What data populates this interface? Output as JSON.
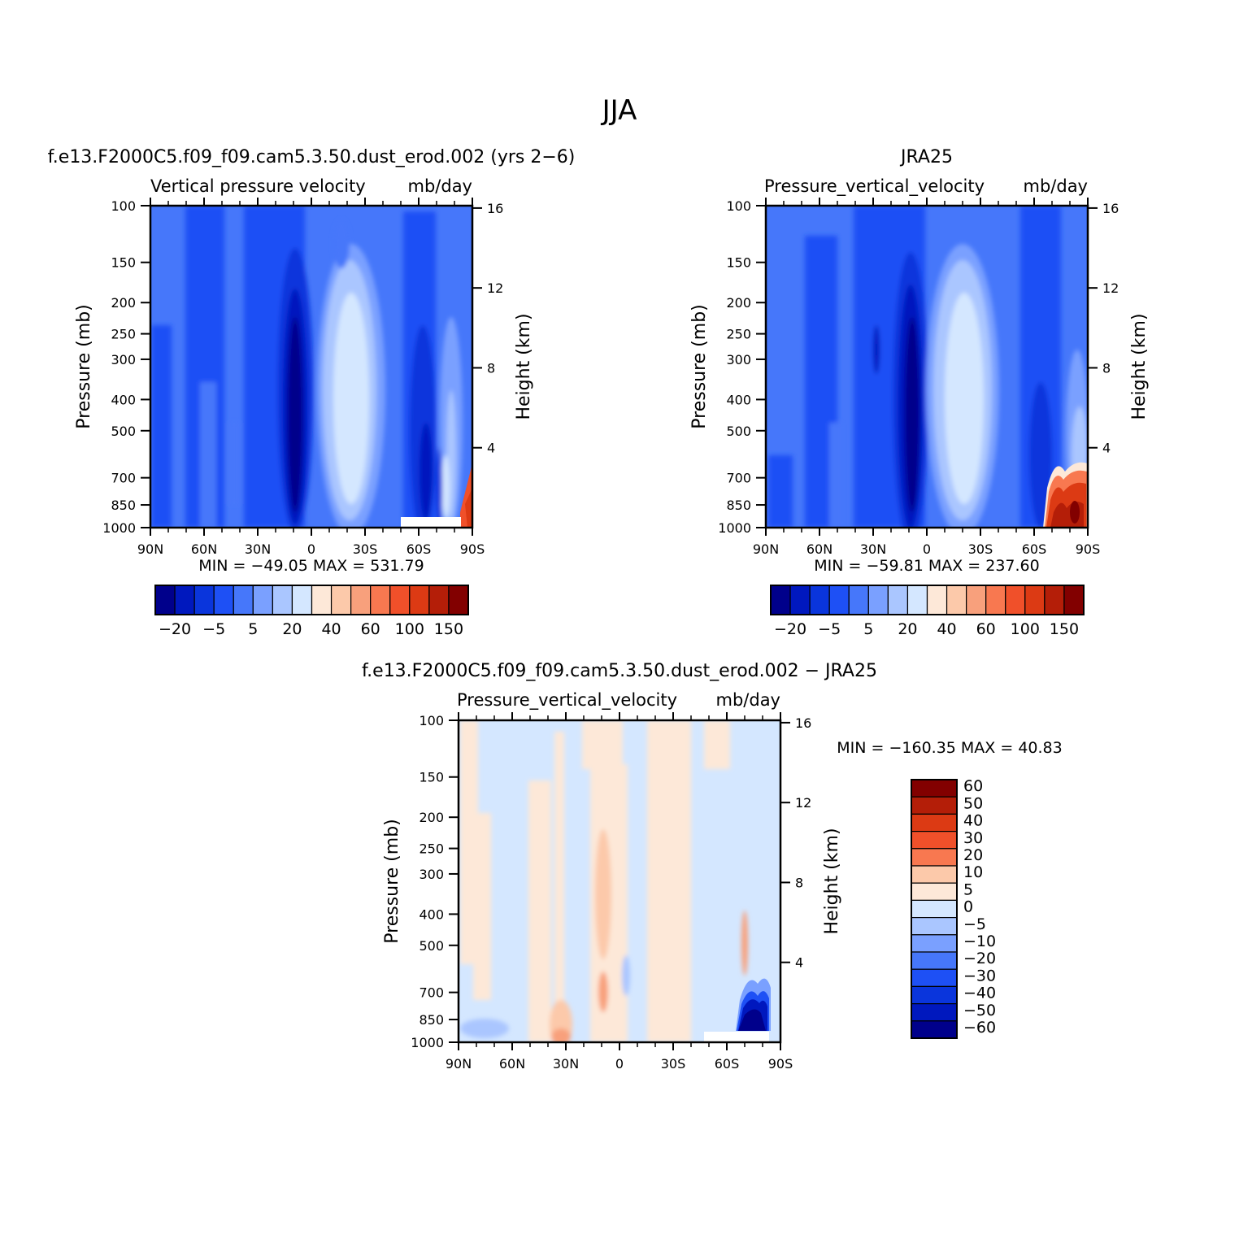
{
  "page_title": "JJA",
  "panels": [
    {
      "id": "model",
      "case_title": "f.e13.F2000C5.f09_f09.cam5.3.50.dust_erod.002 (yrs 2−6)",
      "var_title": "Vertical pressure velocity",
      "units": "mb/day",
      "stats": "MIN =  −49.05   MAX =  531.79"
    },
    {
      "id": "obs",
      "case_title": "JRA25",
      "var_title": "Pressure_vertical_velocity",
      "units": "mb/day",
      "stats": "MIN =  −59.81   MAX =  237.60"
    },
    {
      "id": "diff",
      "case_title": "f.e13.F2000C5.f09_f09.cam5.3.50.dust_erod.002 − JRA25",
      "var_title": "Pressure_vertical_velocity",
      "units": "mb/day",
      "stats": "MIN =  −160.35   MAX =   40.83"
    }
  ],
  "axes": {
    "ylabel_left": "Pressure (mb)",
    "ylabel_right": "Height (km)",
    "pressure_ticks": [
      100,
      150,
      200,
      250,
      300,
      400,
      500,
      700,
      850,
      1000
    ],
    "height_ticks": [
      16,
      12,
      8,
      4
    ],
    "lat_ticks": [
      "90N",
      "60N",
      "30N",
      "0",
      "30S",
      "60S",
      "90S"
    ]
  },
  "colorbar_horizontal": {
    "colors": [
      "#00008b",
      "#0018be",
      "#0a35dc",
      "#1e50f5",
      "#4677fa",
      "#7aa0ff",
      "#aac6ff",
      "#d4e7ff",
      "#fde8d8",
      "#fcc9aa",
      "#f8a07c",
      "#f87850",
      "#f0502a",
      "#dc3a14",
      "#b41e08",
      "#820000"
    ],
    "labels": [
      "−20",
      "−5",
      "5",
      "20",
      "40",
      "60",
      "100",
      "150"
    ]
  },
  "colorbar_vertical": {
    "colors_top_to_bottom": [
      "#820000",
      "#b41e08",
      "#dc3a14",
      "#f0502a",
      "#f87850",
      "#fcc9aa",
      "#fde8d8",
      "#d4e7ff",
      "#aac6ff",
      "#7aa0ff",
      "#4677fa",
      "#1e50f5",
      "#0a35dc",
      "#0018be",
      "#00008b"
    ],
    "labels": [
      "60",
      "50",
      "40",
      "30",
      "20",
      "10",
      "5",
      "0",
      "−5",
      "−10",
      "−20",
      "−30",
      "−40",
      "−50",
      "−60"
    ]
  },
  "chart_data": [
    {
      "type": "heatmap",
      "title": "Vertical pressure velocity",
      "xlabel": "",
      "ylabel": "Pressure (mb)",
      "y2label": "Height (km)",
      "x_ticks": [
        "90N",
        "60N",
        "30N",
        "0",
        "30S",
        "60S",
        "90S"
      ],
      "y_ticks": [
        100,
        150,
        200,
        250,
        300,
        400,
        500,
        700,
        850,
        1000
      ],
      "y2_ticks": [
        16,
        12,
        8,
        4
      ],
      "y_scale": "log",
      "min": -49.05,
      "max": 531.79
    },
    {
      "type": "heatmap",
      "title": "Pressure_vertical_velocity",
      "xlabel": "",
      "ylabel": "Pressure (mb)",
      "y2label": "Height (km)",
      "x_ticks": [
        "90N",
        "60N",
        "30N",
        "0",
        "30S",
        "60S",
        "90S"
      ],
      "y_ticks": [
        100,
        150,
        200,
        250,
        300,
        400,
        500,
        700,
        850,
        1000
      ],
      "y2_ticks": [
        16,
        12,
        8,
        4
      ],
      "y_scale": "log",
      "min": -59.81,
      "max": 237.6
    },
    {
      "type": "heatmap",
      "title": "Pressure_vertical_velocity",
      "xlabel": "",
      "ylabel": "Pressure (mb)",
      "y2label": "Height (km)",
      "x_ticks": [
        "90N",
        "60N",
        "30N",
        "0",
        "30S",
        "60S",
        "90S"
      ],
      "y_ticks": [
        100,
        150,
        200,
        250,
        300,
        400,
        500,
        700,
        850,
        1000
      ],
      "y2_ticks": [
        16,
        12,
        8,
        4
      ],
      "y_scale": "log",
      "min": -160.35,
      "max": 40.83
    }
  ]
}
